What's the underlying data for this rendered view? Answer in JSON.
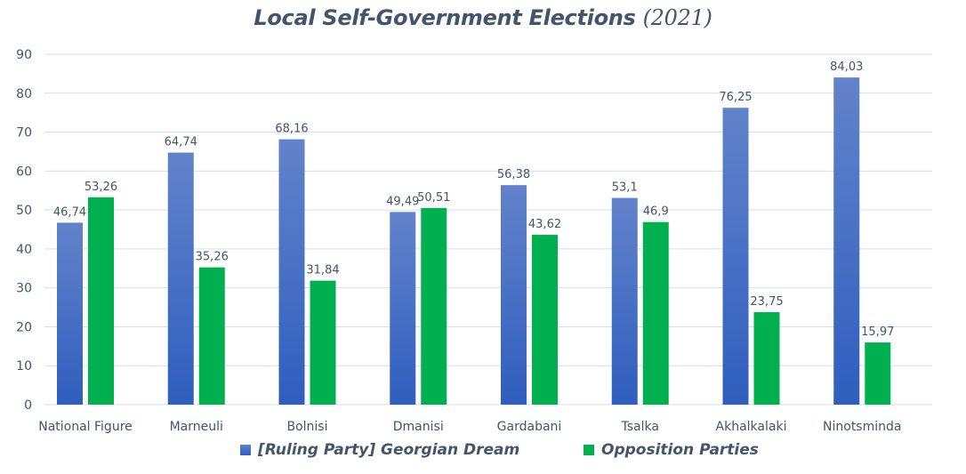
{
  "chart_data": {
    "type": "bar",
    "title": "Local Self-Government Elections",
    "title_year": "(2021)",
    "xlabel": "",
    "ylabel": "",
    "ylim": [
      0,
      90
    ],
    "yticks": [
      0,
      10,
      20,
      30,
      40,
      50,
      60,
      70,
      80,
      90
    ],
    "grid": true,
    "legend_position": "bottom",
    "categories": [
      "National Figure",
      "Marneuli",
      "Bolnisi",
      "Dmanisi",
      "Gardabani",
      "Tsalka",
      "Akhalkalaki",
      "Ninotsminda"
    ],
    "series": [
      {
        "name": "[Ruling Party] Georgian Dream",
        "color": "#4472C4",
        "values": [
          46.74,
          64.74,
          68.16,
          49.49,
          56.38,
          53.1,
          76.25,
          84.03
        ],
        "labels": [
          "46,74",
          "64,74",
          "68,16",
          "49,49",
          "56,38",
          "53,1",
          "76,25",
          "84,03"
        ]
      },
      {
        "name": "Opposition Parties",
        "color": "#00B050",
        "values": [
          53.26,
          35.26,
          31.84,
          50.51,
          43.62,
          46.9,
          23.75,
          15.97
        ],
        "labels": [
          "53,26",
          "35,26",
          "31,84",
          "50,51",
          "43,62",
          "46,9",
          "23,75",
          "15,97"
        ]
      }
    ]
  }
}
